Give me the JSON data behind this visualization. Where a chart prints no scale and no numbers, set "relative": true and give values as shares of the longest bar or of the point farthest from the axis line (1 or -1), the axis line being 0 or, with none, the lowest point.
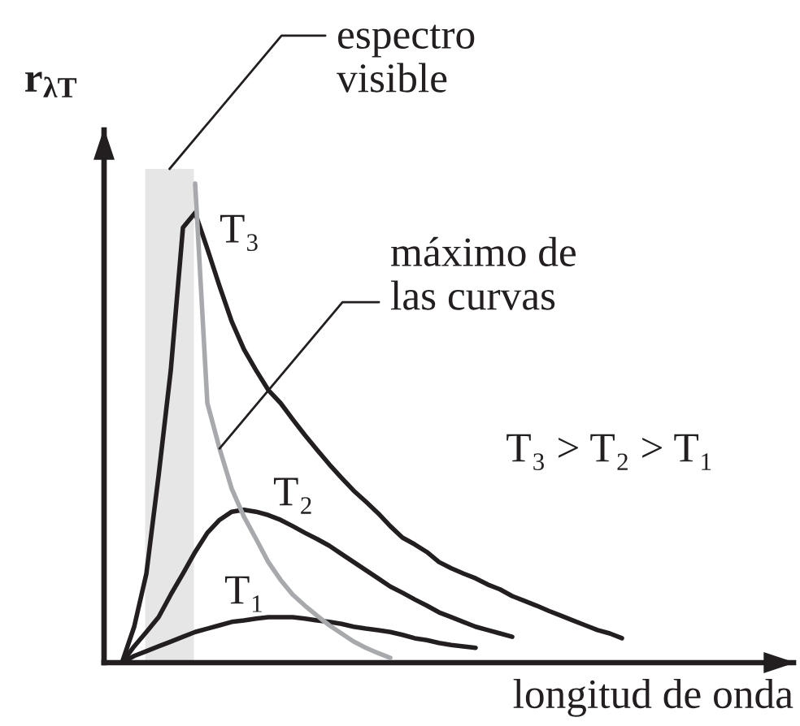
{
  "chart_data": {
    "type": "line",
    "relative": true,
    "xlabel": "longitud de onda",
    "ylabel": "r$_{λT}$",
    "annotations": [
      "espectro\nvisible",
      "máximo de\nlas curvas",
      "T₃ > T₂ > T₁"
    ],
    "categories": [
      null,
      null,
      null,
      null,
      null,
      null,
      null,
      null,
      null,
      null,
      null,
      null,
      null,
      null,
      null,
      null,
      null,
      null,
      null,
      null,
      null,
      null,
      null,
      null,
      null,
      null,
      null,
      null,
      null,
      null,
      null,
      null,
      null,
      null,
      null,
      null,
      null,
      null,
      null,
      null,
      null,
      null
    ],
    "series": [
      {
        "name": "T₃",
        "color": "#231f20",
        "values": [
          0,
          0.075,
          0.186,
          0.39,
          0.61,
          0.908,
          0.939,
          0.864,
          0.786,
          0.712,
          0.654,
          0.61,
          0.569,
          0.542,
          0.508,
          0.475,
          0.444,
          0.414,
          0.386,
          0.359,
          0.336,
          0.312,
          0.285,
          0.261,
          0.247,
          0.231,
          0.21,
          0.197,
          0.186,
          0.176,
          0.163,
          0.153,
          0.139,
          0.129,
          0.119,
          0.108,
          0.098,
          0.088,
          0.078,
          0.068,
          0.061,
          0.051
        ]
      },
      {
        "name": "T₂",
        "color": "#231f20",
        "values": [
          0,
          0.034,
          0.064,
          0.095,
          0.142,
          0.186,
          0.231,
          0.271,
          0.298,
          0.315,
          0.319,
          0.315,
          0.308,
          0.298,
          0.285,
          0.271,
          0.258,
          0.244,
          0.227,
          0.21,
          0.193,
          0.176,
          0.159,
          0.146,
          0.132,
          0.119,
          0.105,
          0.095,
          0.085,
          0.075,
          0.068,
          0.061,
          0.054,
          null,
          null,
          null,
          null,
          null,
          null,
          null,
          null,
          null
        ]
      },
      {
        "name": "T₁",
        "color": "#231f20",
        "values": [
          0,
          0.014,
          0.024,
          0.034,
          0.044,
          0.054,
          0.064,
          0.071,
          0.078,
          0.085,
          0.088,
          0.092,
          0.095,
          0.095,
          0.095,
          0.092,
          0.088,
          0.085,
          0.081,
          0.075,
          0.071,
          0.068,
          0.064,
          0.058,
          0.051,
          0.047,
          0.041,
          0.037,
          0.034,
          0.031,
          null,
          null,
          null,
          null,
          null,
          null,
          null,
          null,
          null,
          null,
          null,
          null
        ]
      },
      {
        "color": "#a7a9ac",
        "values": [
          null,
          null,
          null,
          null,
          null,
          null,
          1.0,
          0.542,
          0.447,
          0.363,
          0.305,
          0.258,
          0.21,
          0.173,
          0.142,
          0.119,
          0.098,
          0.078,
          0.061,
          0.044,
          0.031,
          0.02,
          0.01,
          null,
          null,
          null,
          null,
          null,
          null,
          null,
          null,
          null,
          null,
          null,
          null,
          null,
          null,
          null,
          null,
          null,
          null,
          null
        ]
      }
    ]
  }
}
